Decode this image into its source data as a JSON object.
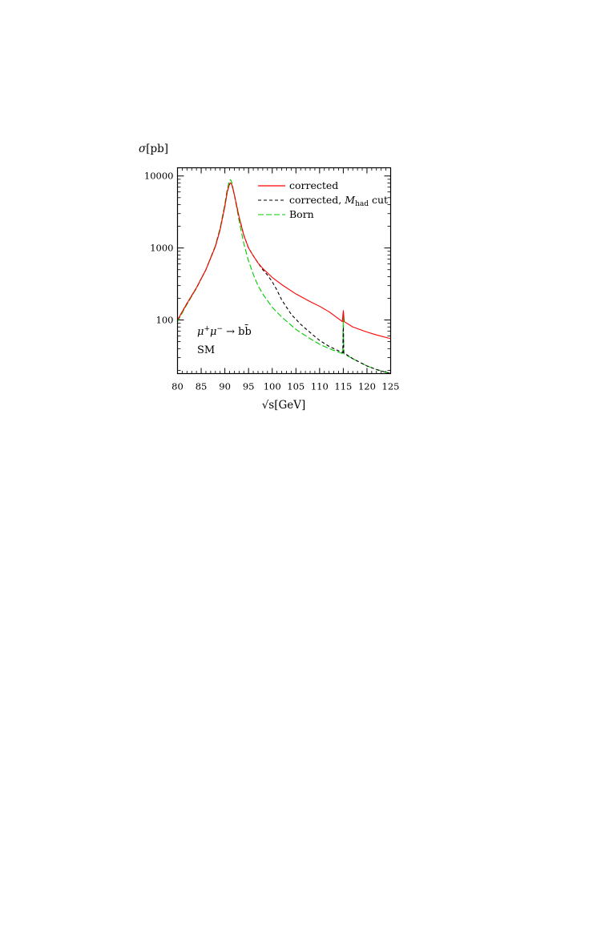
{
  "chart_data": {
    "type": "line",
    "ylabel": {
      "symbol": "σ",
      "unit": "[pb]"
    },
    "xlabel": {
      "symbol": "√s",
      "unit": "[GeV]"
    },
    "xlim": [
      80,
      125
    ],
    "ylim": [
      18,
      13000
    ],
    "yscale": "log",
    "x_ticks": [
      80,
      85,
      90,
      95,
      100,
      105,
      110,
      115,
      120,
      125
    ],
    "y_ticks": [
      100,
      1000,
      10000
    ],
    "x_tick_labels": [
      "80",
      "85",
      "90",
      "95",
      "100",
      "105",
      "110",
      "115",
      "120",
      "125"
    ],
    "y_tick_labels": [
      "100",
      "1000",
      "10000"
    ],
    "legend": {
      "position": "top-right",
      "entries": [
        {
          "key": "corrected",
          "label": "corrected"
        },
        {
          "key": "cut",
          "label_prefix": "corrected, ",
          "label_math": "M",
          "label_sub": "had",
          "label_suffix": " cut"
        },
        {
          "key": "born",
          "label": "Born"
        }
      ]
    },
    "annotations": {
      "process_parts": [
        "μ",
        "+",
        "μ",
        "−",
        " → b",
        "b̄"
      ],
      "model": "SM"
    },
    "series": [
      {
        "key": "corrected",
        "color": "#ff0000",
        "dash": "",
        "x": [
          80,
          82,
          84,
          86,
          88,
          89,
          90,
          90.5,
          91,
          91.2,
          91.5,
          92,
          93,
          94,
          95,
          96,
          97,
          98,
          100,
          102,
          105,
          108,
          110,
          112,
          114.8,
          115,
          115.2,
          117,
          120,
          122,
          125
        ],
        "y": [
          100,
          170,
          280,
          500,
          1050,
          1800,
          3800,
          6000,
          7800,
          8000,
          7500,
          5500,
          2700,
          1500,
          1000,
          780,
          620,
          520,
          390,
          310,
          230,
          180,
          155,
          130,
          95,
          135,
          95,
          80,
          68,
          62,
          55
        ]
      },
      {
        "key": "cut",
        "color": "#000000",
        "dash": "4,3",
        "x": [
          80,
          82,
          84,
          86,
          88,
          89,
          90,
          90.5,
          91,
          91.2,
          91.5,
          92,
          93,
          94,
          95,
          96,
          97,
          98,
          99,
          100,
          101,
          102,
          104,
          106,
          108,
          110,
          112,
          114.9,
          115,
          115.1,
          117,
          120,
          122,
          125
        ],
        "y": [
          100,
          170,
          280,
          500,
          1050,
          1800,
          3800,
          6000,
          7800,
          8000,
          7500,
          5500,
          2700,
          1500,
          1000,
          780,
          620,
          500,
          420,
          340,
          260,
          190,
          120,
          87,
          67,
          52,
          43,
          35,
          80,
          35,
          29,
          23,
          20.5,
          18
        ]
      },
      {
        "key": "born",
        "color": "#00cc00",
        "dash": "7,3",
        "x": [
          80,
          82,
          84,
          86,
          88,
          89,
          90,
          90.5,
          91,
          91.2,
          91.5,
          92,
          93,
          94,
          95,
          96,
          97,
          98,
          100,
          102,
          105,
          108,
          110,
          112,
          114.9,
          115,
          115.1,
          117,
          120,
          122,
          125
        ],
        "y": [
          95,
          165,
          275,
          500,
          1080,
          1900,
          4100,
          6600,
          8700,
          8900,
          8000,
          5500,
          2400,
          1150,
          660,
          430,
          300,
          230,
          150,
          110,
          74,
          55,
          46,
          40,
          34,
          120,
          34,
          29,
          23,
          20.5,
          18
        ]
      }
    ]
  }
}
